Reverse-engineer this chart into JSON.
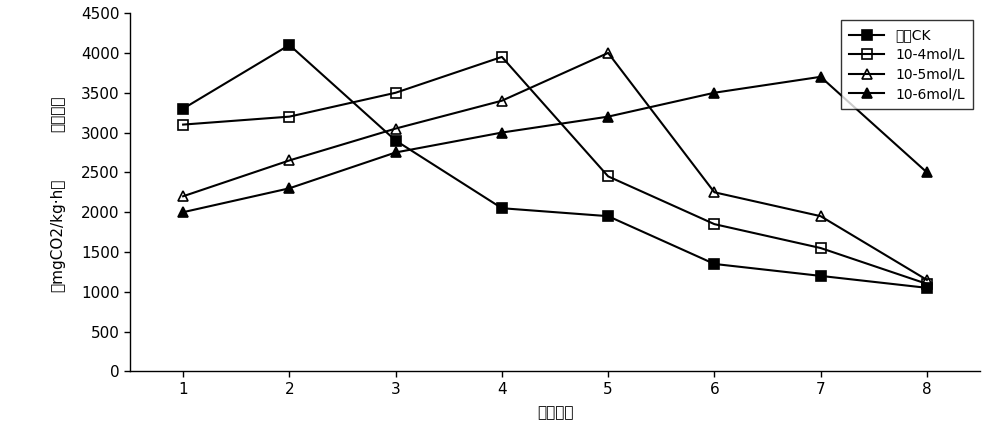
{
  "x": [
    1,
    2,
    3,
    4,
    5,
    6,
    7,
    8
  ],
  "series": {
    "转色CK": [
      3300,
      4100,
      2900,
      2050,
      1950,
      1350,
      1200,
      1050
    ],
    "10-4mol/L": [
      3100,
      3200,
      3500,
      3950,
      2450,
      1850,
      1550,
      1100
    ],
    "10-5mol/L": [
      2200,
      2650,
      3050,
      3400,
      4000,
      2250,
      1950,
      1150
    ],
    "10-6mol/L": [
      2000,
      2300,
      2750,
      3000,
      3200,
      3500,
      3700,
      2500
    ]
  },
  "markers": [
    "s",
    "s",
    "^",
    "^"
  ],
  "fillstyles": [
    "full",
    "none",
    "none",
    "full"
  ],
  "colors": [
    "black",
    "black",
    "black",
    "black"
  ],
  "legend_labels": [
    "转色CK",
    "10-4mol/L",
    "10-5mol/L",
    "10-6mol/L"
  ],
  "ylabel_line1": "呼吸速率",
  "ylabel_line2": "（mgCO2/kg·h）",
  "xlabel": "贮藏天数",
  "ylim": [
    0,
    4500
  ],
  "yticks": [
    0,
    500,
    1000,
    1500,
    2000,
    2500,
    3000,
    3500,
    4000,
    4500
  ],
  "xlim": [
    0.5,
    8.5
  ],
  "xticks": [
    1,
    2,
    3,
    4,
    5,
    6,
    7,
    8
  ],
  "background_color": "#ffffff",
  "markersize": 7,
  "linewidth": 1.5,
  "fontsize_tick": 11,
  "fontsize_label": 11,
  "fontsize_legend": 11
}
